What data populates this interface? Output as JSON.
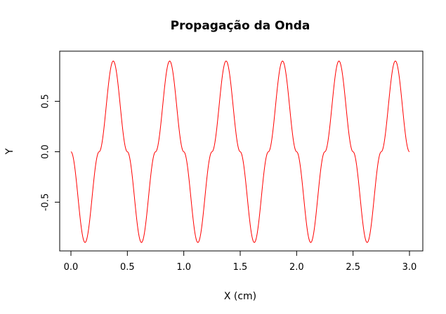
{
  "chart_data": {
    "type": "line",
    "title": "Propagação da Onda",
    "xlabel": "X (cm)",
    "ylabel": "Y",
    "xlim": [
      0.0,
      3.0
    ],
    "ylim": [
      -0.9,
      0.9
    ],
    "x_ticks": [
      "0.0",
      "0.5",
      "1.0",
      "1.5",
      "2.0",
      "2.5",
      "3.0"
    ],
    "y_ticks": [
      "-0.5",
      "0.0",
      "0.5"
    ],
    "grid": false,
    "series": [
      {
        "color": "#ff0000",
        "x": [
          0.0,
          0.125,
          0.25,
          0.375,
          0.5,
          0.625,
          0.75,
          0.875,
          1.0,
          1.125,
          1.25,
          1.375,
          1.5,
          1.625,
          1.75,
          1.875,
          2.0,
          2.125,
          2.25,
          2.375,
          2.5,
          2.625,
          2.75,
          2.875,
          3.0
        ],
        "y": [
          0.0,
          -0.9,
          0.0,
          0.9,
          0.0,
          -0.9,
          0.0,
          0.9,
          0.0,
          -0.9,
          0.0,
          0.9,
          0.0,
          -0.9,
          0.0,
          0.9,
          0.0,
          -0.9,
          0.0,
          0.9,
          0.0,
          -0.9,
          0.0,
          0.9,
          0.0
        ]
      }
    ]
  }
}
